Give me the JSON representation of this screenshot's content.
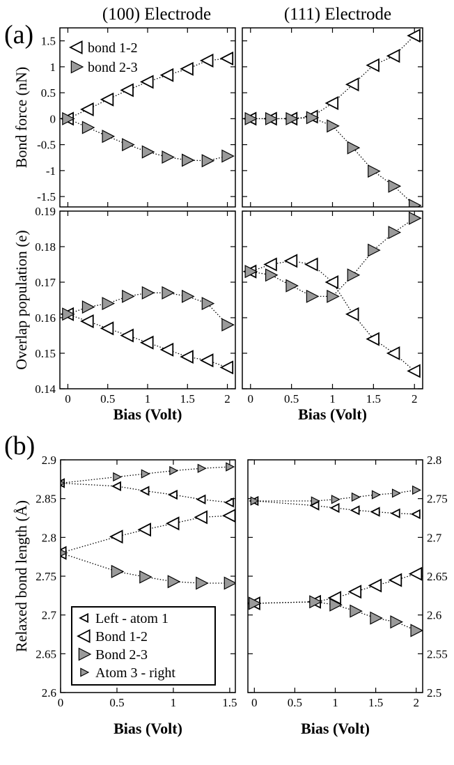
{
  "figure": {
    "panel_a_label": "(a)",
    "panel_b_label": "(b)",
    "col_title_left": "(100) Electrode",
    "col_title_right": "(111) Electrode"
  },
  "styles": {
    "filled_color": "#9a9a9a",
    "outline_color": "#000000"
  },
  "chart_data": [
    {
      "id": "force100",
      "type": "scatter",
      "ylabel": "Bond force (nN)",
      "xlabel": "",
      "xlim": [
        -0.1,
        2.1
      ],
      "ylim": [
        -1.7,
        1.75
      ],
      "xticks": [
        0,
        0.5,
        1,
        1.5,
        2
      ],
      "xticklabels": [],
      "yticks": [
        -1.5,
        -1,
        -0.5,
        0,
        0.5,
        1,
        1.5
      ],
      "yticklabels": [
        "-1.5",
        "-1",
        "-0.5",
        "0",
        "0.5",
        "1",
        "1.5"
      ],
      "legend": {
        "position": "top-left",
        "entries": [
          {
            "label": "bond 1-2",
            "marker": "tri-left",
            "filled": false
          },
          {
            "label": "bond 2-3",
            "marker": "tri-right",
            "filled": true
          }
        ]
      },
      "series": [
        {
          "name": "bond 1-2",
          "marker": "tri-left",
          "filled": false,
          "size": 9,
          "x": [
            0,
            0.25,
            0.5,
            0.75,
            1,
            1.25,
            1.5,
            1.75,
            2
          ],
          "y": [
            0,
            0.18,
            0.37,
            0.55,
            0.71,
            0.84,
            0.96,
            1.12,
            1.16
          ]
        },
        {
          "name": "bond 2-3",
          "marker": "tri-right",
          "filled": true,
          "size": 9,
          "x": [
            0,
            0.25,
            0.5,
            0.75,
            1,
            1.25,
            1.5,
            1.75,
            2
          ],
          "y": [
            0,
            -0.17,
            -0.34,
            -0.5,
            -0.64,
            -0.74,
            -0.8,
            -0.81,
            -0.72
          ]
        }
      ]
    },
    {
      "id": "force111",
      "type": "scatter",
      "ylabel": "",
      "xlabel": "",
      "xlim": [
        -0.1,
        2.1
      ],
      "ylim": [
        -1.7,
        1.75
      ],
      "xticks": [
        0,
        0.5,
        1,
        1.5,
        2
      ],
      "xticklabels": [],
      "yticks": [
        -1.5,
        -1,
        -0.5,
        0,
        0.5,
        1,
        1.5
      ],
      "yticklabels": [],
      "series": [
        {
          "name": "bond 1-2",
          "marker": "tri-left",
          "filled": false,
          "size": 9,
          "x": [
            0,
            0.25,
            0.5,
            0.75,
            1,
            1.25,
            1.5,
            1.75,
            2
          ],
          "y": [
            0,
            0,
            0,
            0.04,
            0.3,
            0.66,
            1.03,
            1.21,
            1.6
          ]
        },
        {
          "name": "bond 2-3",
          "marker": "tri-right",
          "filled": true,
          "size": 9,
          "x": [
            0,
            0.25,
            0.5,
            0.75,
            1,
            1.25,
            1.5,
            1.75,
            2
          ],
          "y": [
            0,
            0,
            0,
            0.02,
            -0.14,
            -0.56,
            -1.01,
            -1.3,
            -1.67
          ]
        }
      ]
    },
    {
      "id": "overlap100",
      "type": "scatter",
      "ylabel": "Overlap population (e)",
      "xlabel": "Bias (Volt)",
      "xlim": [
        -0.1,
        2.1
      ],
      "ylim": [
        0.14,
        0.19
      ],
      "xticks": [
        0,
        0.5,
        1,
        1.5,
        2
      ],
      "xticklabels": [
        "0",
        "0.5",
        "1",
        "1.5",
        "2"
      ],
      "yticks": [
        0.14,
        0.15,
        0.16,
        0.17,
        0.18,
        0.19
      ],
      "yticklabels": [
        "0.14",
        "0.15",
        "0.16",
        "0.17",
        "0.18",
        "0.19"
      ],
      "series": [
        {
          "name": "bond 1-2",
          "marker": "tri-left",
          "filled": false,
          "size": 9,
          "x": [
            0,
            0.25,
            0.5,
            0.75,
            1,
            1.25,
            1.5,
            1.75,
            2
          ],
          "y": [
            0.161,
            0.159,
            0.157,
            0.155,
            0.153,
            0.151,
            0.149,
            0.148,
            0.146
          ]
        },
        {
          "name": "bond 2-3",
          "marker": "tri-right",
          "filled": true,
          "size": 9,
          "x": [
            0,
            0.25,
            0.5,
            0.75,
            1,
            1.25,
            1.5,
            1.75,
            2
          ],
          "y": [
            0.161,
            0.163,
            0.164,
            0.166,
            0.167,
            0.167,
            0.166,
            0.164,
            0.158
          ]
        }
      ]
    },
    {
      "id": "overlap111",
      "type": "scatter",
      "ylabel": "",
      "xlabel": "Bias (Volt)",
      "xlim": [
        -0.1,
        2.1
      ],
      "ylim": [
        0.14,
        0.19
      ],
      "xticks": [
        0,
        0.5,
        1,
        1.5,
        2
      ],
      "xticklabels": [
        "0",
        "0.5",
        "1",
        "1.5",
        "2"
      ],
      "yticks": [
        0.14,
        0.15,
        0.16,
        0.17,
        0.18,
        0.19
      ],
      "yticklabels": [],
      "series": [
        {
          "name": "bond 1-2",
          "marker": "tri-left",
          "filled": false,
          "size": 9,
          "x": [
            0,
            0.25,
            0.5,
            0.75,
            1,
            1.25,
            1.5,
            1.75,
            2
          ],
          "y": [
            0.173,
            0.175,
            0.176,
            0.175,
            0.17,
            0.161,
            0.154,
            0.15,
            0.145
          ]
        },
        {
          "name": "bond 2-3",
          "marker": "tri-right",
          "filled": true,
          "size": 9,
          "x": [
            0,
            0.25,
            0.5,
            0.75,
            1,
            1.25,
            1.5,
            1.75,
            2
          ],
          "y": [
            0.173,
            0.172,
            0.169,
            0.166,
            0.166,
            0.172,
            0.179,
            0.184,
            0.188
          ]
        }
      ]
    },
    {
      "id": "length100",
      "type": "scatter",
      "ylabel": "Relaxed bond length (Å)",
      "xlabel": "Bias (Volt)",
      "xlim": [
        0,
        1.55
      ],
      "ylim": [
        2.6,
        2.9
      ],
      "xticks": [
        0,
        0.5,
        1,
        1.5
      ],
      "xticklabels": [
        "0",
        "0.5",
        "1",
        "1.5"
      ],
      "yticks": [
        2.6,
        2.65,
        2.7,
        2.75,
        2.8,
        2.85,
        2.9
      ],
      "yticklabels": [
        "2.6",
        "2.65",
        "2.7",
        "2.75",
        "2.8",
        "2.85",
        "2.9"
      ],
      "legend": {
        "position": "bottom-left",
        "entries": [
          {
            "label": "Left - atom 1",
            "marker": "tri-left",
            "filled": false,
            "size": 6
          },
          {
            "label": "Bond 1-2",
            "marker": "tri-left",
            "filled": false,
            "size": 9
          },
          {
            "label": "Bond 2-3",
            "marker": "tri-right",
            "filled": true,
            "size": 9
          },
          {
            "label": "Atom 3 - right",
            "marker": "tri-right",
            "filled": true,
            "size": 6
          }
        ]
      },
      "series": [
        {
          "name": "Left - atom 1",
          "marker": "tri-left",
          "filled": false,
          "size": 6,
          "x": [
            0,
            0.5,
            0.75,
            1,
            1.25,
            1.5
          ],
          "y": [
            2.87,
            2.866,
            2.86,
            2.855,
            2.849,
            2.845
          ]
        },
        {
          "name": "Bond 1-2",
          "marker": "tri-left",
          "filled": false,
          "size": 9,
          "x": [
            0,
            0.5,
            0.75,
            1,
            1.25,
            1.5
          ],
          "y": [
            2.78,
            2.801,
            2.81,
            2.818,
            2.826,
            2.828
          ]
        },
        {
          "name": "Bond 2-3",
          "marker": "tri-right",
          "filled": true,
          "size": 9,
          "x": [
            0,
            0.5,
            0.75,
            1,
            1.25,
            1.5
          ],
          "y": [
            2.78,
            2.756,
            2.749,
            2.743,
            2.741,
            2.741
          ]
        },
        {
          "name": "Atom 3 - right",
          "marker": "tri-right",
          "filled": true,
          "size": 6,
          "x": [
            0,
            0.5,
            0.75,
            1,
            1.25,
            1.5
          ],
          "y": [
            2.87,
            2.878,
            2.882,
            2.886,
            2.889,
            2.891
          ]
        }
      ]
    },
    {
      "id": "length111",
      "type": "scatter",
      "ylabel": "",
      "xlabel": "Bias (Volt)",
      "xlim": [
        -0.08,
        2.08
      ],
      "ylim": [
        2.5,
        2.8
      ],
      "xticks": [
        0,
        0.5,
        1,
        1.5,
        2
      ],
      "xticklabels": [
        "0",
        "0.5",
        "1",
        "1.5",
        "2"
      ],
      "yticks": [
        2.5,
        2.55,
        2.6,
        2.65,
        2.7,
        2.75,
        2.8
      ],
      "yticklabels": [
        "2.5",
        "2.55",
        "2.6",
        "2.65",
        "2.7",
        "2.75",
        "2.8"
      ],
      "yaxis_side": "right",
      "series": [
        {
          "name": "Left - atom 1",
          "marker": "tri-left",
          "filled": false,
          "size": 6,
          "x": [
            0,
            0.75,
            1,
            1.25,
            1.5,
            1.75,
            2
          ],
          "y": [
            2.747,
            2.741,
            2.738,
            2.735,
            2.733,
            2.731,
            2.73
          ]
        },
        {
          "name": "Bond 1-2",
          "marker": "tri-left",
          "filled": false,
          "size": 9,
          "x": [
            0,
            0.75,
            1,
            1.25,
            1.5,
            1.75,
            2
          ],
          "y": [
            2.615,
            2.617,
            2.622,
            2.63,
            2.638,
            2.645,
            2.653
          ]
        },
        {
          "name": "Bond 2-3",
          "marker": "tri-right",
          "filled": true,
          "size": 9,
          "x": [
            0,
            0.75,
            1,
            1.25,
            1.5,
            1.75,
            2
          ],
          "y": [
            2.615,
            2.617,
            2.613,
            2.605,
            2.596,
            2.591,
            2.58
          ]
        },
        {
          "name": "Atom 3 - right",
          "marker": "tri-right",
          "filled": true,
          "size": 6,
          "x": [
            0,
            0.75,
            1,
            1.25,
            1.5,
            1.75,
            2
          ],
          "y": [
            2.747,
            2.747,
            2.749,
            2.752,
            2.755,
            2.757,
            2.761
          ]
        }
      ]
    }
  ]
}
